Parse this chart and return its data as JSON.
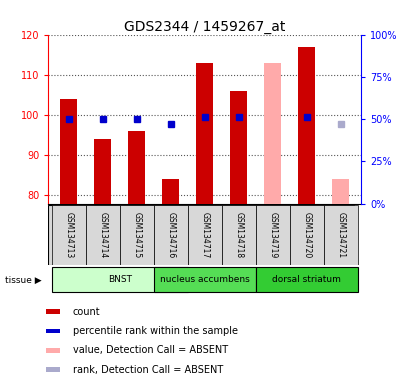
{
  "title": "GDS2344 / 1459267_at",
  "samples": [
    "GSM134713",
    "GSM134714",
    "GSM134715",
    "GSM134716",
    "GSM134717",
    "GSM134718",
    "GSM134719",
    "GSM134720",
    "GSM134721"
  ],
  "count_values": [
    104,
    94,
    96,
    84,
    113,
    106,
    null,
    117,
    null
  ],
  "count_absent_values": [
    null,
    null,
    null,
    null,
    null,
    null,
    113,
    null,
    84
  ],
  "rank_values": [
    50,
    50,
    50,
    47,
    51,
    51,
    null,
    51,
    null
  ],
  "rank_absent_values": [
    null,
    null,
    null,
    null,
    null,
    null,
    null,
    null,
    47
  ],
  "ylim_left": [
    78,
    120
  ],
  "ylim_right": [
    0,
    100
  ],
  "yticks_left": [
    80,
    90,
    100,
    110,
    120
  ],
  "yticks_right": [
    0,
    25,
    50,
    75,
    100
  ],
  "ytick_labels_right": [
    "0%",
    "25%",
    "50%",
    "75%",
    "100%"
  ],
  "bar_color": "#cc0000",
  "bar_absent_color": "#ffaaaa",
  "rank_color": "#0000cc",
  "rank_absent_color": "#aaaacc",
  "tissue_groups": [
    {
      "label": "BNST",
      "start": 0,
      "end": 3,
      "color": "#ccffcc"
    },
    {
      "label": "nucleus accumbens",
      "start": 3,
      "end": 5,
      "color": "#55dd55"
    },
    {
      "label": "dorsal striatum",
      "start": 6,
      "end": 8,
      "color": "#33cc33"
    }
  ],
  "tissue_label": "tissue",
  "legend_items": [
    {
      "color": "#cc0000",
      "label": "count"
    },
    {
      "color": "#0000cc",
      "label": "percentile rank within the sample"
    },
    {
      "color": "#ffaaaa",
      "label": "value, Detection Call = ABSENT"
    },
    {
      "color": "#aaaacc",
      "label": "rank, Detection Call = ABSENT"
    }
  ],
  "bar_width": 0.5,
  "rank_marker_size": 5,
  "dotted_line_color": "#555555",
  "background_color": "#ffffff",
  "title_fontsize": 10,
  "tick_fontsize": 7,
  "legend_fontsize": 7
}
